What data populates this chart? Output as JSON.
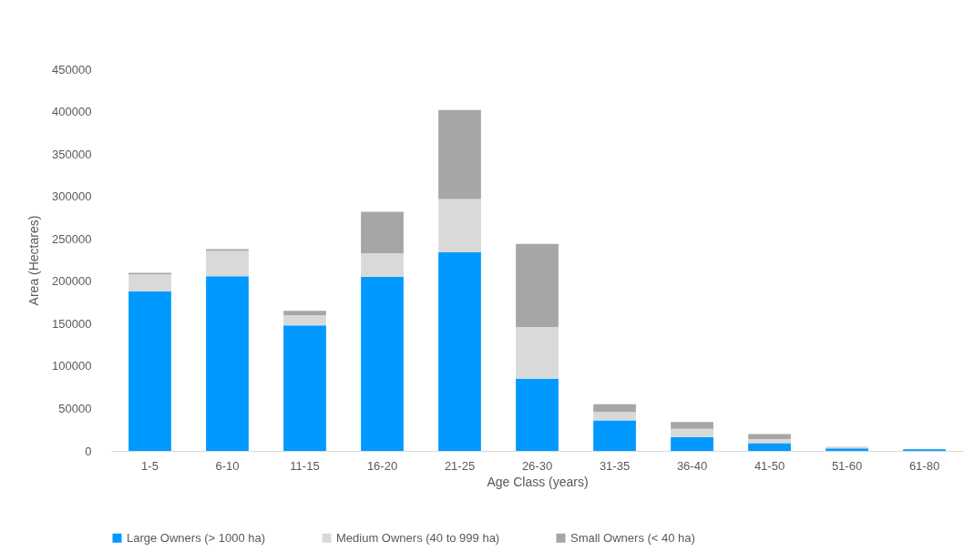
{
  "chart_data": {
    "type": "bar",
    "stacked": true,
    "xlabel": "Age Class (years)",
    "ylabel": "Area (Hectares)",
    "categories": [
      "1-5",
      "6-10",
      "11-15",
      "16-20",
      "21-25",
      "26-30",
      "31-35",
      "36-40",
      "41-50",
      "51-60",
      "61-80"
    ],
    "series": [
      {
        "name": "Large Owners (> 1000 ha)",
        "color": "#0099ff",
        "values": [
          188000,
          206000,
          148000,
          205000,
          234000,
          85000,
          36000,
          16000,
          9000,
          3000,
          2000
        ]
      },
      {
        "name": "Medium Owners (40 to 999 ha)",
        "color": "#d9d9d9",
        "values": [
          20000,
          30000,
          12000,
          28000,
          63000,
          61000,
          10000,
          10000,
          5000,
          2000,
          0
        ]
      },
      {
        "name": "Small Owners (< 40 ha)",
        "color": "#a6a6a6",
        "values": [
          2000,
          2000,
          5000,
          49000,
          105000,
          98000,
          9000,
          8000,
          6000,
          0,
          0
        ]
      }
    ],
    "ylim": [
      0,
      450000
    ],
    "yticks": [
      0,
      50000,
      100000,
      150000,
      200000,
      250000,
      300000,
      350000,
      400000,
      450000
    ],
    "grid": false,
    "legend": "bottom"
  }
}
